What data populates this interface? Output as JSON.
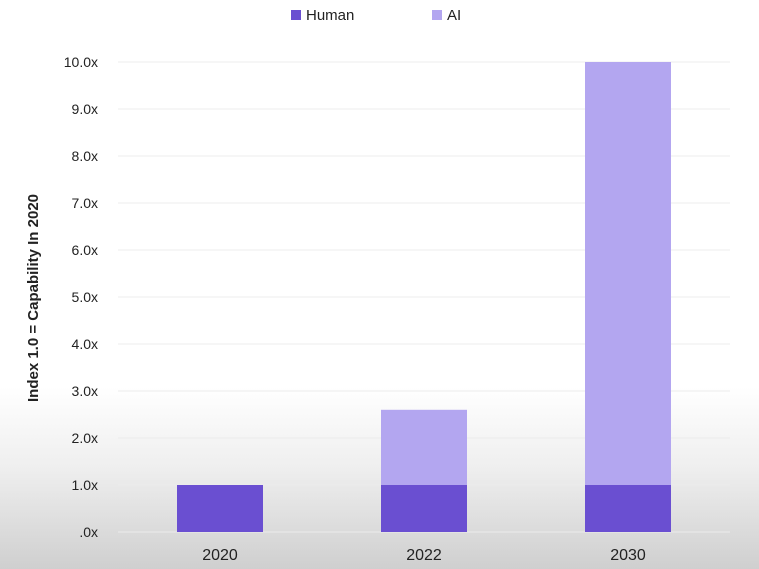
{
  "chart_data": {
    "type": "bar",
    "stacked": true,
    "categories": [
      "2020",
      "2022",
      "2030"
    ],
    "series": [
      {
        "name": "Human",
        "values": [
          1.0,
          1.0,
          1.0
        ],
        "color": "#6a4fd1"
      },
      {
        "name": "AI",
        "values": [
          0.0,
          1.6,
          9.0
        ],
        "color": "#b3a6f0"
      }
    ],
    "ylabel": "Index 1.0 = Capability In 2020",
    "ylim": [
      0,
      10
    ],
    "yticks": [
      ".0x",
      "1.0x",
      "2.0x",
      "3.0x",
      "4.0x",
      "5.0x",
      "6.0x",
      "7.0x",
      "8.0x",
      "9.0x",
      "10.0x"
    ],
    "grid": true,
    "legend_position": "top-center"
  }
}
